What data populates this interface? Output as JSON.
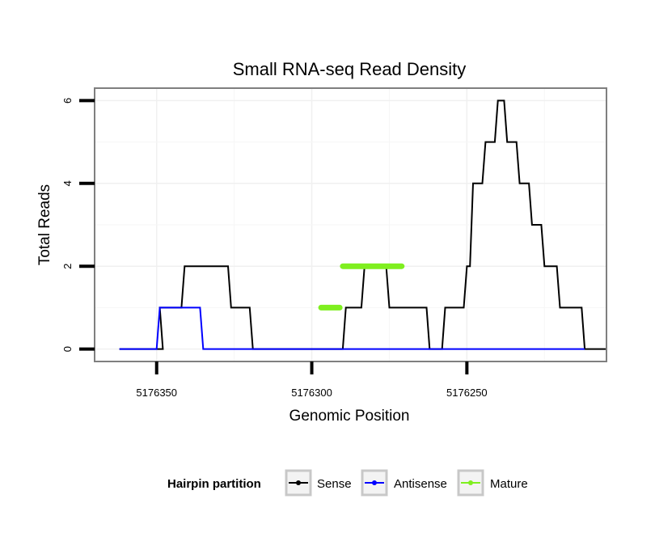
{
  "chart_data": {
    "type": "line",
    "title": "Small RNA-seq Read Density",
    "xlabel": "Genomic Position",
    "ylabel": "Total Reads",
    "x_reversed": true,
    "xlim": [
      5176370,
      5176205
    ],
    "ylim": [
      -0.3,
      6.3
    ],
    "x_ticks": [
      5176350,
      5176300,
      5176250
    ],
    "x_tick_labels": [
      "5176350",
      "5176300",
      "5176250"
    ],
    "y_ticks": [
      0,
      2,
      4,
      6
    ],
    "y_tick_labels": [
      "0",
      "2",
      "4",
      "6"
    ],
    "grid": true,
    "legend": {
      "title": "Hairpin partition",
      "position": "bottom",
      "entries": [
        "Sense",
        "Antisense",
        "Mature"
      ]
    },
    "series": [
      {
        "name": "Sense",
        "color": "#000000",
        "x": [
          5176362,
          5176348,
          5176349,
          5176345,
          5176344,
          5176342,
          5176341,
          5176327,
          5176326,
          5176320,
          5176319,
          5176312,
          5176311,
          5176290,
          5176289,
          5176284,
          5176283,
          5176276,
          5176275,
          5176263,
          5176262,
          5176258,
          5176257,
          5176251,
          5176250,
          5176249,
          5176248,
          5176245,
          5176244,
          5176241,
          5176240,
          5176238,
          5176237,
          5176234,
          5176233,
          5176230,
          5176229,
          5176226,
          5176225,
          5176221,
          5176220,
          5176213,
          5176212,
          5176205
        ],
        "y": [
          0,
          0,
          1,
          1,
          1,
          1,
          2,
          2,
          1,
          1,
          0,
          0,
          0,
          0,
          1,
          1,
          2,
          2,
          1,
          1,
          0,
          0,
          1,
          1,
          2,
          2,
          4,
          4,
          5,
          5,
          6,
          6,
          5,
          5,
          4,
          4,
          3,
          3,
          2,
          2,
          1,
          1,
          0,
          0
        ]
      },
      {
        "name": "Antisense",
        "color": "#0000ff",
        "x": [
          5176362,
          5176350,
          5176349,
          5176336,
          5176335,
          5176212
        ],
        "y": [
          0,
          0,
          1,
          1,
          0,
          0
        ]
      },
      {
        "name": "Mature",
        "color": "#7fef1f",
        "x": [
          5176297,
          5176291,
          null,
          5176290,
          5176271
        ],
        "y": [
          1,
          1,
          null,
          2,
          2
        ]
      }
    ]
  }
}
